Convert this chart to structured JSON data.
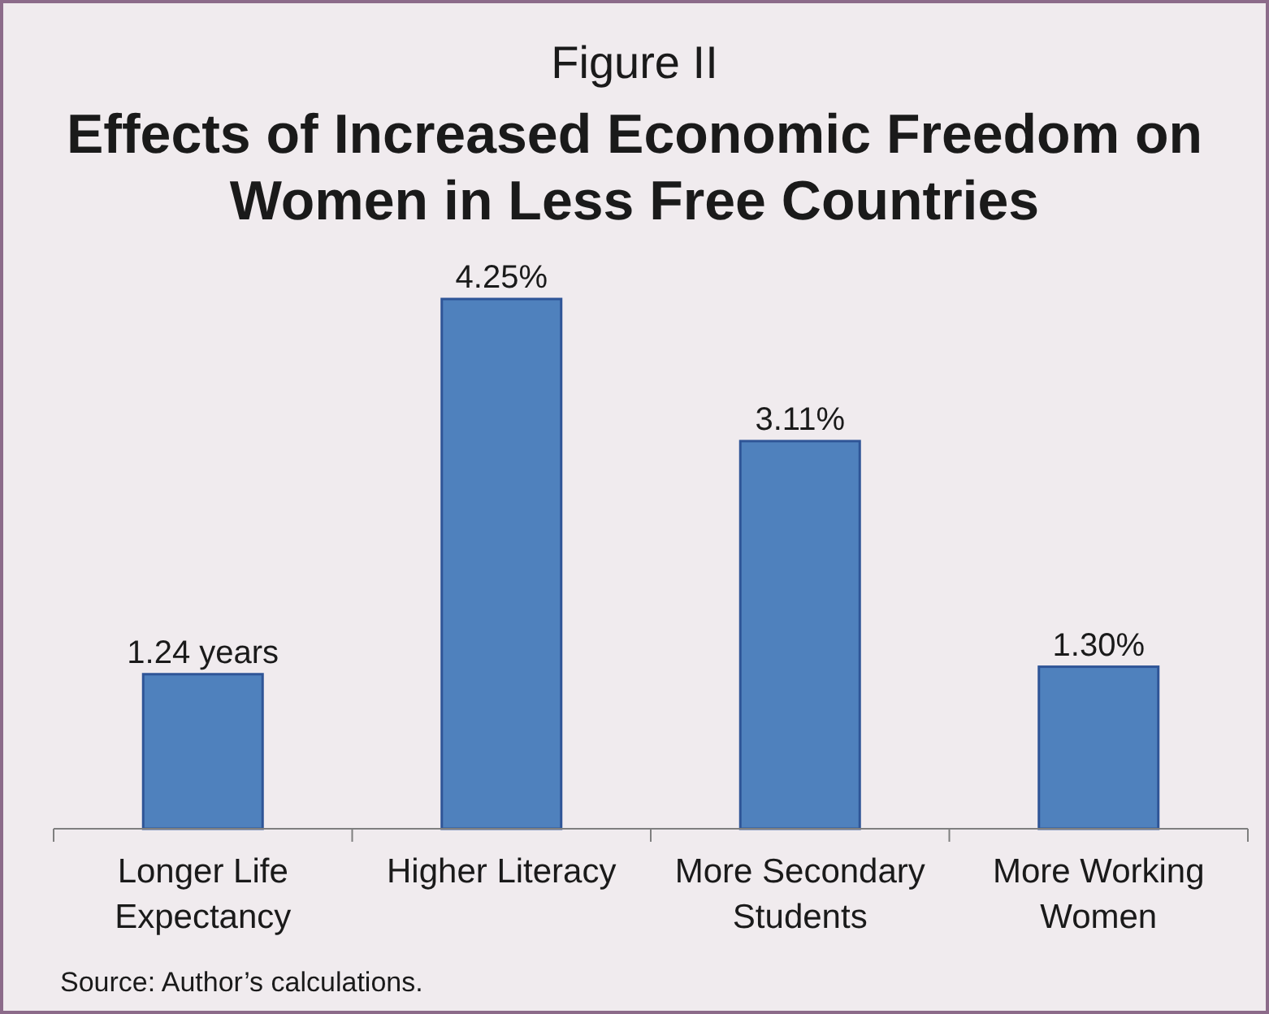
{
  "chart_data": {
    "type": "bar",
    "title": "Figure II",
    "subtitle": "Effects of Increased Economic Freedom on Women in Less Free Countries",
    "categories": [
      "Longer Life Expectancy",
      "Higher Literacy",
      "More Secondary Students",
      "More Working Women"
    ],
    "values": [
      1.24,
      4.25,
      3.11,
      1.3
    ],
    "value_labels": [
      "1.24 years",
      "4.25%",
      "3.11%",
      "1.30%"
    ],
    "color": "#4f81bd",
    "annotations": [
      "Source: Author’s calculations."
    ]
  }
}
